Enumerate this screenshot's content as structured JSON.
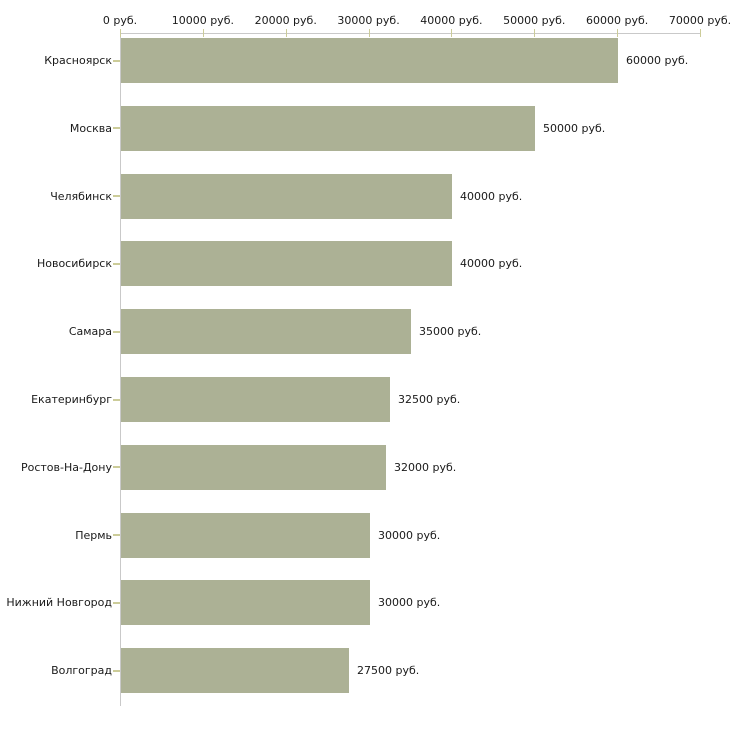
{
  "chart_data": {
    "type": "bar",
    "orientation": "horizontal",
    "title": "",
    "xlabel": "",
    "ylabel": "",
    "unit": "руб.",
    "categories": [
      "Красноярск",
      "Москва",
      "Челябинск",
      "Новосибирск",
      "Самара",
      "Екатеринбург",
      "Ростов-На-Дону",
      "Пермь",
      "Нижний Новгород",
      "Волгоград"
    ],
    "values": [
      60000,
      50000,
      40000,
      40000,
      35000,
      32500,
      32000,
      30000,
      30000,
      27500
    ],
    "value_labels": [
      "60000 руб.",
      "50000 руб.",
      "40000 руб.",
      "40000 руб.",
      "35000 руб.",
      "32500 руб.",
      "32000 руб.",
      "30000 руб.",
      "30000 руб.",
      "27500 руб."
    ],
    "xlim": [
      0,
      70000
    ],
    "x_ticks": [
      {
        "value": 0,
        "label": "0 руб."
      },
      {
        "value": 10000,
        "label": "10000 руб."
      },
      {
        "value": 20000,
        "label": "20000 руб."
      },
      {
        "value": 30000,
        "label": "30000 руб."
      },
      {
        "value": 40000,
        "label": "40000 руб."
      },
      {
        "value": 50000,
        "label": "50000 руб."
      },
      {
        "value": 60000,
        "label": "60000 руб."
      },
      {
        "value": 70000,
        "label": "70000 руб."
      }
    ],
    "grid": false,
    "legend": false,
    "colors": {
      "bar_fill": "#acb195",
      "axis_line": "#c9c9c9",
      "tick_mark": "#cccc99",
      "text": "#1a1a1a",
      "background": "#ffffff"
    }
  }
}
